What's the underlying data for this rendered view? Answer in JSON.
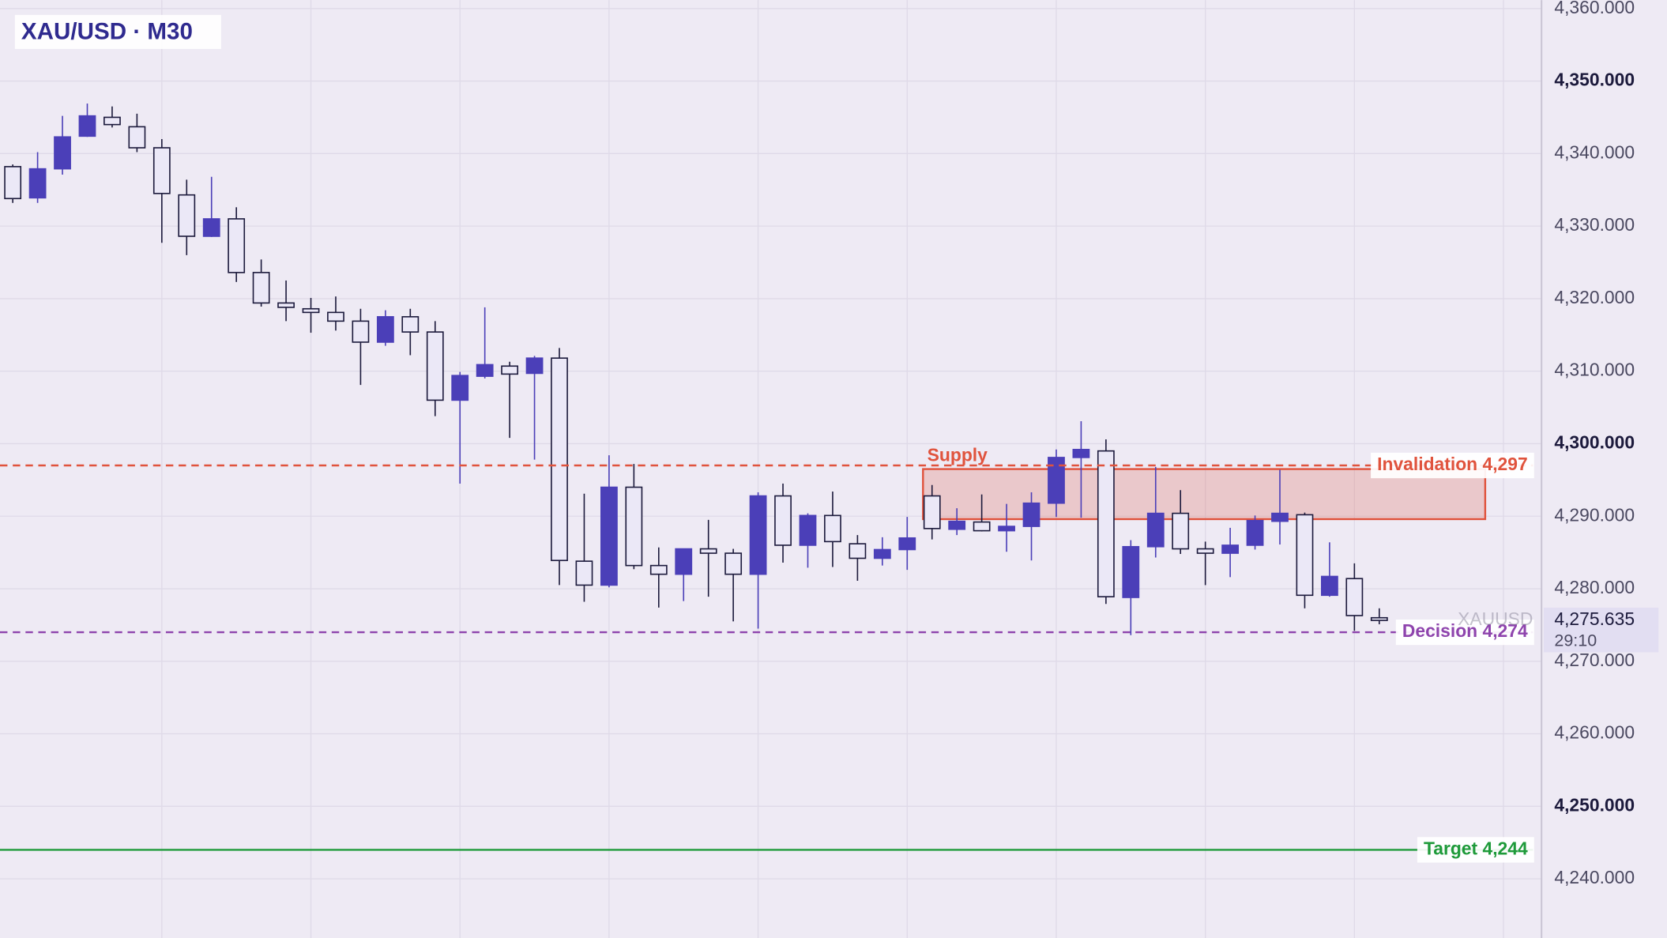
{
  "chart_data": {
    "type": "candlestick",
    "title": "XAU/USD · M30",
    "symbol_label": "XAUUSD",
    "ylim": [
      4231.85,
      4361.17
    ],
    "yticks": [
      {
        "value": 4240,
        "label": "4,240.000"
      },
      {
        "value": 4250,
        "label": "4,250.000"
      },
      {
        "value": 4260,
        "label": "4,260.000"
      },
      {
        "value": 4270,
        "label": "4,270.000"
      },
      {
        "value": 4280,
        "label": "4,280.000"
      },
      {
        "value": 4290,
        "label": "4,290.000"
      },
      {
        "value": 4300,
        "label": "4,300.000"
      },
      {
        "value": 4310,
        "label": "4,310.000"
      },
      {
        "value": 4320,
        "label": "4,320.000"
      },
      {
        "value": 4330,
        "label": "4,330.000"
      },
      {
        "value": 4340,
        "label": "4,340.000"
      },
      {
        "value": 4350,
        "label": "4,350.000"
      },
      {
        "value": 4360,
        "label": "4,360.000"
      }
    ],
    "grid": true,
    "up_color": "#4b3fb8",
    "down_color": "#ebe8f7",
    "outline_color": "#1c1a3c",
    "open": [
      4338.2,
      4333.9,
      4337.9,
      4342.4,
      4345.0,
      4343.7,
      4340.8,
      4334.3,
      4328.6,
      4331.0,
      4323.6,
      4319.4,
      4318.6,
      4318.1,
      4316.9,
      4314.0,
      4317.5,
      4315.4,
      4306.0,
      4309.3,
      4310.7,
      4309.7,
      4311.8,
      4283.8,
      4280.5,
      4294.0,
      4283.2,
      4282.0,
      4285.5,
      4284.9,
      4282.0,
      4292.8,
      4286.0,
      4290.1,
      4286.2,
      4284.2,
      4285.4,
      4292.8,
      4288.2,
      4289.2,
      4288.0,
      4288.6,
      4291.8,
      4298.1,
      4299.0,
      4278.8,
      4285.8,
      4290.4,
      4285.5,
      4284.9,
      4286.0,
      4289.3,
      4290.2,
      4279.1,
      4281.4,
      4276.0
    ],
    "high": [
      4338.5,
      4340.2,
      4345.2,
      4346.9,
      4346.5,
      4345.5,
      4342.0,
      4336.4,
      4336.8,
      4332.6,
      4325.4,
      4322.5,
      4320.1,
      4320.3,
      4318.6,
      4318.4,
      4318.6,
      4316.9,
      4309.9,
      4318.8,
      4311.3,
      4312.1,
      4313.2,
      4293.1,
      4298.4,
      4297.2,
      4285.7,
      4285.5,
      4289.5,
      4285.5,
      4293.3,
      4294.5,
      4290.4,
      4293.4,
      4287.4,
      4287.1,
      4289.9,
      4294.3,
      4291.1,
      4293.0,
      4291.7,
      4293.3,
      4299.2,
      4303.1,
      4300.6,
      4286.7,
      4296.8,
      4293.6,
      4286.5,
      4288.4,
      4290.1,
      4296.4,
      4290.5,
      4286.4,
      4283.5,
      4277.3
    ],
    "low": [
      4333.2,
      4333.2,
      4337.1,
      4342.3,
      4343.6,
      4340.2,
      4327.7,
      4326.0,
      4328.5,
      4322.3,
      4318.9,
      4316.9,
      4315.3,
      4315.6,
      4308.1,
      4313.5,
      4312.2,
      4303.8,
      4294.5,
      4309.0,
      4300.8,
      4297.8,
      4280.5,
      4278.2,
      4280.2,
      4282.7,
      4277.4,
      4278.3,
      4278.9,
      4275.5,
      4274.5,
      4283.6,
      4282.9,
      4283.0,
      4281.1,
      4283.2,
      4282.6,
      4286.8,
      4287.4,
      4287.9,
      4285.1,
      4283.9,
      4289.9,
      4289.8,
      4277.9,
      4273.6,
      4284.3,
      4284.8,
      4280.5,
      4281.6,
      4285.4,
      4286.1,
      4277.3,
      4278.9,
      4274.2,
      4275.1
    ],
    "close": [
      4333.8,
      4337.9,
      4342.3,
      4345.2,
      4344.0,
      4340.8,
      4334.5,
      4328.6,
      4331.0,
      4323.6,
      4319.4,
      4318.8,
      4318.1,
      4316.9,
      4314.0,
      4317.5,
      4315.4,
      4306.0,
      4309.4,
      4310.9,
      4309.6,
      4311.8,
      4283.9,
      4280.5,
      4294.0,
      4283.2,
      4282.0,
      4285.5,
      4284.9,
      4282.0,
      4292.8,
      4286.0,
      4290.1,
      4286.5,
      4284.2,
      4285.4,
      4287.0,
      4288.3,
      4289.3,
      4288.0,
      4288.6,
      4291.8,
      4298.1,
      4299.2,
      4278.9,
      4285.8,
      4290.4,
      4285.5,
      4284.9,
      4286.0,
      4289.4,
      4290.4,
      4279.1,
      4281.7,
      4276.3,
      4275.635
    ],
    "zone": {
      "label": "Supply",
      "low": 4289.6,
      "high": 4296.5,
      "color": "#e0533d"
    },
    "levels": [
      {
        "label": "Invalidation 4,297",
        "value": 4297,
        "color": "#e0533d",
        "style": "dashed"
      },
      {
        "label": "Decision 4,274",
        "value": 4274,
        "color": "#8e44ad",
        "style": "dashed"
      },
      {
        "label": "Target 4,244",
        "value": 4244,
        "color": "#1e9a3a",
        "style": "solid"
      }
    ],
    "last_price": {
      "value": 4275.635,
      "label": "4,275.635"
    },
    "countdown": "29:10"
  }
}
